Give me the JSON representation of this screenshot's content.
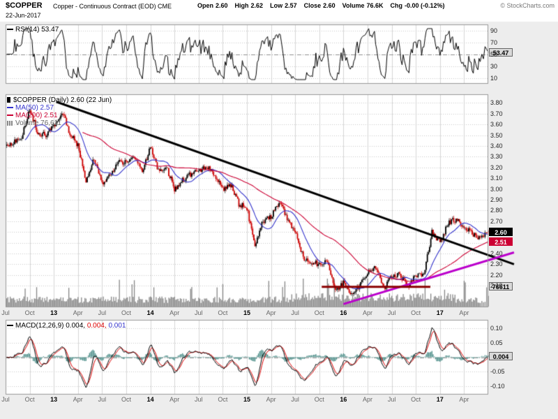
{
  "header": {
    "symbol": "$COPPER",
    "description": "Copper - Continuous Contract (EOD) CME",
    "date": "22-Jun-2017",
    "quote_labels": [
      "Open",
      "High",
      "Low",
      "Close",
      "Volume",
      "Chg"
    ],
    "quote": {
      "open": "2.60",
      "high": "2.62",
      "low": "2.57",
      "close": "2.60",
      "volume": "76.6K",
      "chg": "-0.00 (-0.12%)"
    },
    "copyright": "© StockCharts.com"
  },
  "rsi": {
    "label": "RSI(14) 53.47",
    "last": "53.47"
  },
  "price_panel": {
    "legend_symbol": "$COPPER (Daily) 2.60 (22 Jun)",
    "ma50_label": "MA(50) 2.57",
    "ma200_label": "MA(200) 2.51",
    "volume_label": "Volume 76,611",
    "last_close": "2.60",
    "ma200_last": "2.51",
    "volume_last": "76611"
  },
  "macd": {
    "label": "MACD(12,26,9)",
    "v1": "0.004,",
    "v2": "0.004,",
    "v3": "0.001",
    "last": "0.004"
  },
  "axes": {
    "price_ticks": [
      "3.80",
      "3.70",
      "3.60",
      "3.50",
      "3.40",
      "3.30",
      "3.20",
      "3.10",
      "3.00",
      "2.90",
      "2.80",
      "2.70",
      "2.40",
      "2.30",
      "2.20",
      "2.10"
    ],
    "rsi_ticks": [
      90,
      70,
      50,
      30,
      10
    ],
    "macd_ticks": [
      "0.10",
      "0.05",
      "-0.05",
      "-0.10"
    ]
  },
  "x_axis": {
    "ticks": [
      {
        "m": 0,
        "label": "Jul",
        "year": false
      },
      {
        "m": 3,
        "label": "Oct",
        "year": false
      },
      {
        "m": 6,
        "label": "13",
        "year": true
      },
      {
        "m": 9,
        "label": "Apr",
        "year": false
      },
      {
        "m": 12,
        "label": "Jul",
        "year": false
      },
      {
        "m": 15,
        "label": "Oct",
        "year": false
      },
      {
        "m": 18,
        "label": "14",
        "year": true
      },
      {
        "m": 21,
        "label": "Apr",
        "year": false
      },
      {
        "m": 24,
        "label": "Jul",
        "year": false
      },
      {
        "m": 27,
        "label": "Oct",
        "year": false
      },
      {
        "m": 30,
        "label": "15",
        "year": true
      },
      {
        "m": 33,
        "label": "Apr",
        "year": false
      },
      {
        "m": 36,
        "label": "Jul",
        "year": false
      },
      {
        "m": 39,
        "label": "Oct",
        "year": false
      },
      {
        "m": 42,
        "label": "16",
        "year": true
      },
      {
        "m": 45,
        "label": "Apr",
        "year": false
      },
      {
        "m": 48,
        "label": "Jul",
        "year": false
      },
      {
        "m": 51,
        "label": "Oct",
        "year": false
      },
      {
        "m": 54,
        "label": "17",
        "year": true
      },
      {
        "m": 57,
        "label": "Apr",
        "year": false
      }
    ]
  },
  "chart_data": {
    "type": "candlestick",
    "title": "$COPPER Copper - Continuous Contract (EOD) CME",
    "as_of": "22-Jun-2017",
    "last": {
      "open": 2.6,
      "high": 2.62,
      "low": 2.57,
      "close": 2.6,
      "volume": 76611,
      "change_pct": -0.12
    },
    "indicators": {
      "rsi14": 53.47,
      "ma50": 2.57,
      "ma200": 2.51,
      "macd": [
        0.004,
        0.004,
        0.001
      ]
    },
    "ylim_price": [
      1.9,
      3.88
    ],
    "ylim_rsi": [
      0,
      100
    ],
    "ylim_macd": [
      -0.129,
      0.129
    ],
    "x_range_months": 60,
    "price_monthly": {
      "start": "2012-07",
      "interval": "1 month",
      "close": [
        3.44,
        3.48,
        3.74,
        3.52,
        3.5,
        3.58,
        3.72,
        3.52,
        3.4,
        3.06,
        3.28,
        3.04,
        3.12,
        3.26,
        3.25,
        3.28,
        3.16,
        3.38,
        3.18,
        3.2,
        3.0,
        3.08,
        3.14,
        3.16,
        3.22,
        3.12,
        3.0,
        3.04,
        2.86,
        2.82,
        2.46,
        2.7,
        2.74,
        2.88,
        2.72,
        2.6,
        2.36,
        2.32,
        2.3,
        2.32,
        2.04,
        2.12,
        2.02,
        2.1,
        2.22,
        2.28,
        2.08,
        2.18,
        2.22,
        2.08,
        2.2,
        2.2,
        2.6,
        2.5,
        2.68,
        2.72,
        2.66,
        2.58,
        2.54,
        2.6
      ]
    },
    "trendlines": [
      {
        "name": "descending-resistance",
        "color": "#000000",
        "width": 3,
        "from": {
          "m": 6.3,
          "price": 3.81
        },
        "to": {
          "m": 63.2,
          "price": 2.3
        }
      },
      {
        "name": "ascending-support",
        "color": "#bb00cc",
        "width": 3,
        "from": {
          "m": 42.0,
          "price": 1.93
        },
        "to": {
          "m": 63.2,
          "price": 2.41
        }
      },
      {
        "name": "horizontal-support",
        "color": "#8b0000",
        "width": 3,
        "from": {
          "m": 39.3,
          "price": 2.09
        },
        "to": {
          "m": 52.8,
          "price": 2.09
        }
      }
    ]
  }
}
